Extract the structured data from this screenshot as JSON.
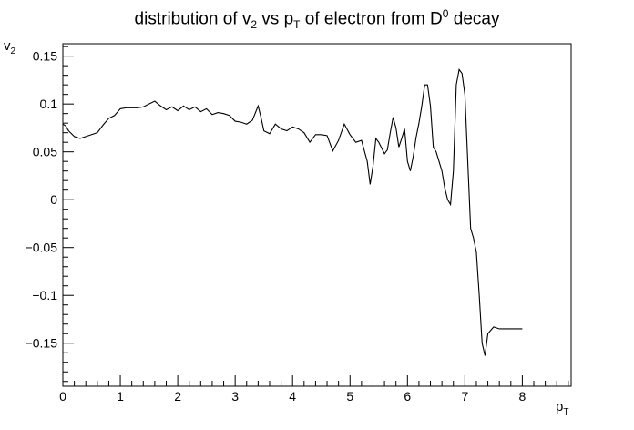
{
  "chart_data": {
    "type": "line",
    "title": {
      "pre": "distribution of v",
      "s1": "2",
      "mid1": " vs p",
      "s2": "T",
      "mid2": " of electron from D",
      "s3": "0",
      "post": " decay"
    },
    "xlabel": {
      "base": "p",
      "sub": "T"
    },
    "ylabel": {
      "base": "v",
      "sub": "2"
    },
    "xlim": [
      0,
      8.85
    ],
    "ylim": [
      -0.195,
      0.163
    ],
    "x_ticks": [
      0,
      1,
      2,
      3,
      4,
      5,
      6,
      7,
      8
    ],
    "x_tick_labels": [
      "0",
      "1",
      "2",
      "3",
      "4",
      "5",
      "6",
      "7",
      "8"
    ],
    "y_ticks": [
      -0.15,
      -0.1,
      -0.05,
      0,
      0.05,
      0.1,
      0.15
    ],
    "y_tick_labels": [
      "−0.15",
      "−0.1",
      "−0.05",
      "0",
      "0.05",
      "0.1",
      "0.15"
    ],
    "grid": false,
    "series": [
      {
        "color": "#000000",
        "x": [
          0,
          0.05,
          0.1,
          0.15,
          0.2,
          0.25,
          0.3,
          0.35,
          0.4,
          0.5,
          0.6,
          0.7,
          0.8,
          0.9,
          1.0,
          1.1,
          1.2,
          1.3,
          1.4,
          1.5,
          1.6,
          1.7,
          1.8,
          1.9,
          2.0,
          2.1,
          2.2,
          2.3,
          2.4,
          2.5,
          2.6,
          2.7,
          2.8,
          2.9,
          3.0,
          3.1,
          3.2,
          3.3,
          3.4,
          3.45,
          3.5,
          3.6,
          3.7,
          3.8,
          3.9,
          4.0,
          4.1,
          4.2,
          4.3,
          4.4,
          4.5,
          4.6,
          4.7,
          4.8,
          4.9,
          5.0,
          5.1,
          5.2,
          5.3,
          5.35,
          5.4,
          5.45,
          5.5,
          5.6,
          5.65,
          5.7,
          5.75,
          5.8,
          5.85,
          5.9,
          5.95,
          6.0,
          6.05,
          6.1,
          6.15,
          6.2,
          6.25,
          6.3,
          6.35,
          6.4,
          6.45,
          6.5,
          6.55,
          6.6,
          6.65,
          6.7,
          6.75,
          6.8,
          6.85,
          6.9,
          6.95,
          7.0,
          7.05,
          7.1,
          7.15,
          7.2,
          7.25,
          7.3,
          7.35,
          7.4,
          7.5,
          7.6,
          7.7,
          7.8,
          7.9,
          8.0
        ],
        "y": [
          0.079,
          0.077,
          0.072,
          0.069,
          0.066,
          0.065,
          0.064,
          0.065,
          0.066,
          0.068,
          0.07,
          0.078,
          0.085,
          0.088,
          0.095,
          0.096,
          0.096,
          0.096,
          0.097,
          0.1,
          0.103,
          0.098,
          0.094,
          0.097,
          0.093,
          0.098,
          0.094,
          0.097,
          0.092,
          0.095,
          0.089,
          0.091,
          0.09,
          0.088,
          0.082,
          0.081,
          0.079,
          0.083,
          0.098,
          0.086,
          0.072,
          0.069,
          0.079,
          0.074,
          0.072,
          0.076,
          0.074,
          0.07,
          0.06,
          0.068,
          0.068,
          0.067,
          0.051,
          0.062,
          0.079,
          0.068,
          0.06,
          0.062,
          0.04,
          0.016,
          0.035,
          0.064,
          0.06,
          0.048,
          0.052,
          0.07,
          0.086,
          0.075,
          0.055,
          0.064,
          0.074,
          0.04,
          0.03,
          0.045,
          0.065,
          0.08,
          0.098,
          0.12,
          0.12,
          0.098,
          0.055,
          0.05,
          0.04,
          0.03,
          0.012,
          0.0,
          -0.005,
          0.03,
          0.12,
          0.136,
          0.132,
          0.11,
          0.04,
          -0.03,
          -0.04,
          -0.055,
          -0.1,
          -0.15,
          -0.163,
          -0.14,
          -0.133,
          -0.135,
          -0.135,
          -0.135,
          -0.135,
          -0.135
        ]
      }
    ]
  }
}
